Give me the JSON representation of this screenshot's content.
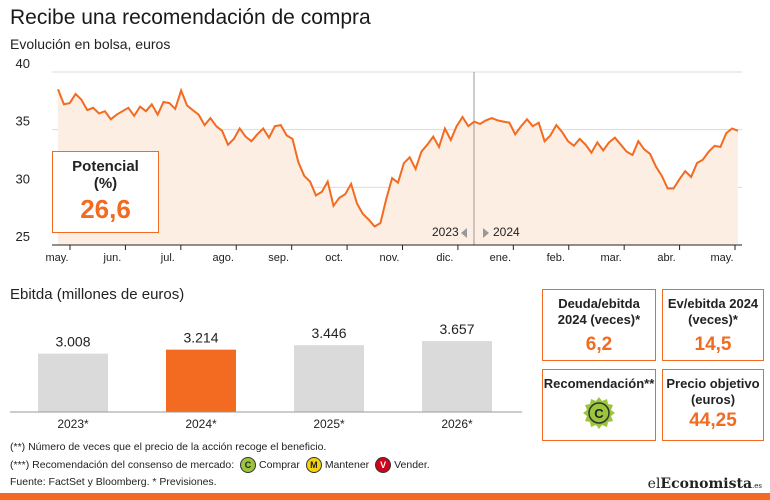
{
  "title": "Recibe una recomendación de compra",
  "subtitle": "Evolución en bolsa, euros",
  "potencial": {
    "label_line1": "Potencial",
    "label_line2": "(%)",
    "value": "26,6"
  },
  "year_labels": {
    "left": "2023",
    "right": "2024"
  },
  "ebitda_title": "Ebitda (millones de euros)",
  "metrics": {
    "deuda": {
      "label_line1": "Deuda/ebitda",
      "label_line2": "2024 (veces)*",
      "value": "6,2"
    },
    "ev": {
      "label_line1": "Ev/ebitda 2024",
      "label_line2": "(veces)*",
      "value": "14,5"
    },
    "recomendacion": {
      "label": "Recomendación**",
      "badge": "C"
    },
    "precio": {
      "label_line1": "Precio objetivo",
      "label_line2": "(euros)",
      "value": "44,25"
    }
  },
  "notes": {
    "line1": "(**) Número de veces que el precio de la acción recoge el beneficio.",
    "line2_prefix": "(***) Recomendación del consenso de mercado:",
    "comprar_badge": "C",
    "comprar": "Comprar",
    "mantener_badge": "M",
    "mantener": "Mantener",
    "vender_badge": "V",
    "vender": "Vender.",
    "source": "Fuente: FactSet y Bloomberg.  * Previsiones."
  },
  "logo": {
    "part1": "el",
    "part2": "Economista",
    "suffix": ".es"
  },
  "colors": {
    "accent": "#f26b21",
    "area_fill": "#fdeee4",
    "bar_gray": "#dadada",
    "comprar": "#9bc53d",
    "mantener": "#f5d20a",
    "vender": "#d0021b"
  },
  "chart_data": [
    {
      "type": "area",
      "title": "Evolución en bolsa, euros",
      "ylim": [
        25,
        40
      ],
      "yticks": [
        25,
        30,
        35,
        40
      ],
      "xtick_labels": [
        "may.",
        "jun.",
        "jul.",
        "ago.",
        "sep.",
        "oct.",
        "nov.",
        "dic.",
        "ene.",
        "feb.",
        "mar.",
        "abr.",
        "may."
      ],
      "grid": true,
      "series": [
        {
          "values": [
            38.5,
            37.2,
            37.3,
            38.1,
            37.6,
            36.7,
            36.9,
            36.4,
            36.6,
            35.9,
            36.3,
            36.6,
            36.9,
            36.2,
            37.0,
            36.6,
            37.2,
            36.3,
            37.4,
            37.3,
            36.8,
            38.4,
            37.1,
            36.7,
            36.3,
            35.4,
            36.0,
            35.3,
            34.9,
            33.7,
            34.2,
            35.1,
            34.4,
            34.0,
            34.6,
            35.1,
            34.3,
            35.3,
            35.4,
            34.5,
            34.2,
            32.2,
            31.0,
            30.5,
            29.3,
            29.6,
            30.5,
            28.4,
            29.1,
            29.4,
            30.3,
            28.6,
            27.7,
            27.2,
            26.6,
            26.9,
            29.0,
            30.8,
            30.4,
            32.1,
            32.6,
            31.6,
            33.1,
            33.7,
            34.4,
            33.5,
            35.1,
            34.1,
            35.3,
            36.1,
            35.3,
            35.7,
            35.5,
            35.8,
            36.0,
            35.8,
            35.7,
            35.6,
            34.6,
            35.3,
            35.9,
            35.3,
            35.6,
            34.0,
            34.5,
            35.4,
            34.8,
            34.0,
            33.6,
            34.2,
            33.7,
            33.0,
            33.9,
            33.2,
            33.9,
            34.3,
            33.7,
            33.1,
            32.8,
            34.0,
            33.3,
            32.9,
            31.8,
            31.0,
            29.9,
            29.9,
            30.7,
            31.4,
            30.9,
            32.1,
            32.4,
            33.1,
            33.6,
            33.5,
            34.7,
            35.1,
            34.9
          ]
        }
      ]
    },
    {
      "type": "bar",
      "title": "Ebitda (millones de euros)",
      "categories": [
        "2023*",
        "2024*",
        "2025*",
        "2026*"
      ],
      "values": [
        3008,
        3214,
        3446,
        3657
      ],
      "labels": [
        "3.008",
        "3.214",
        "3.446",
        "3.657"
      ],
      "highlight_index": 1
    }
  ]
}
